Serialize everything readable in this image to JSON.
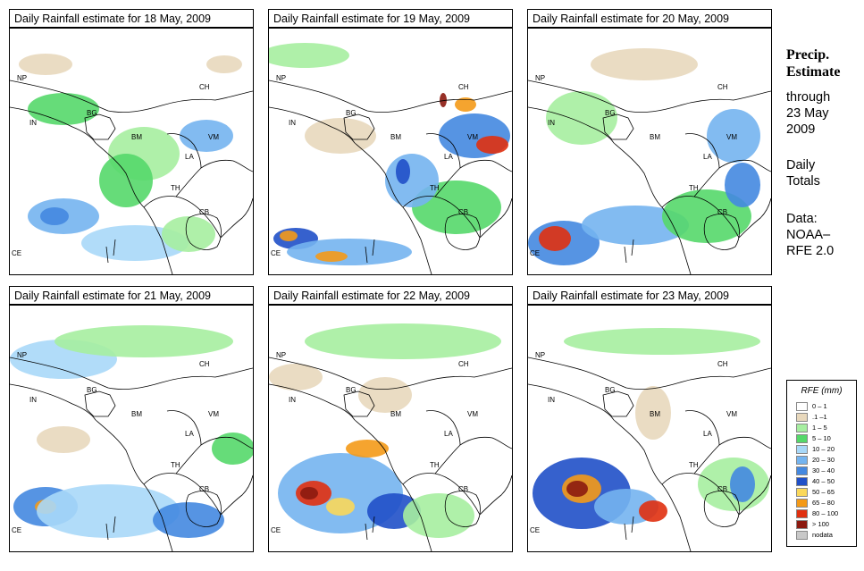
{
  "panels": [
    {
      "title": "Daily Rainfall estimate for  18 May, 2009"
    },
    {
      "title": "Daily Rainfall estimate for  19 May, 2009"
    },
    {
      "title": "Daily Rainfall estimate for  20 May, 2009"
    },
    {
      "title": "Daily Rainfall estimate for  21 May, 2009"
    },
    {
      "title": "Daily Rainfall estimate for  22 May, 2009"
    },
    {
      "title": "Daily Rainfall estimate for  23 May, 2009"
    }
  ],
  "map_labels": {
    "np": "NP",
    "ch": "CH",
    "in": "IN",
    "bg": "BG",
    "bm": "BM",
    "vm": "VM",
    "la": "LA",
    "th": "TH",
    "cb": "CB",
    "ce": "CE"
  },
  "sidebar": {
    "title_line1": "Precip.",
    "title_line2": "Estimate",
    "through": "through",
    "date_line1": "23 May",
    "date_line2": "2009",
    "daily_line1": "Daily",
    "daily_line2": "Totals",
    "data_line1": "Data:",
    "data_line2": "NOAA–",
    "data_line3": "RFE 2.0"
  },
  "legend": {
    "title": "RFE (mm)",
    "items": [
      {
        "label": "0 – 1",
        "color": "#ffffff"
      },
      {
        "label": ".1 –1",
        "color": "#e8d8bc"
      },
      {
        "label": "1 – 5",
        "color": "#a6eea0"
      },
      {
        "label": "5 – 10",
        "color": "#55d86a"
      },
      {
        "label": "10 – 20",
        "color": "#a8d8f8"
      },
      {
        "label": "20 – 30",
        "color": "#74b4f0"
      },
      {
        "label": "30 – 40",
        "color": "#4488e0"
      },
      {
        "label": "40 – 50",
        "color": "#2050c8"
      },
      {
        "label": "50 – 65",
        "color": "#fad85a"
      },
      {
        "label": "65 – 80",
        "color": "#f49a18"
      },
      {
        "label": "80 – 100",
        "color": "#e03010"
      },
      {
        "label": "> 100",
        "color": "#8c1a10"
      },
      {
        "label": "nodata",
        "color": "#c8c8c8"
      }
    ]
  }
}
